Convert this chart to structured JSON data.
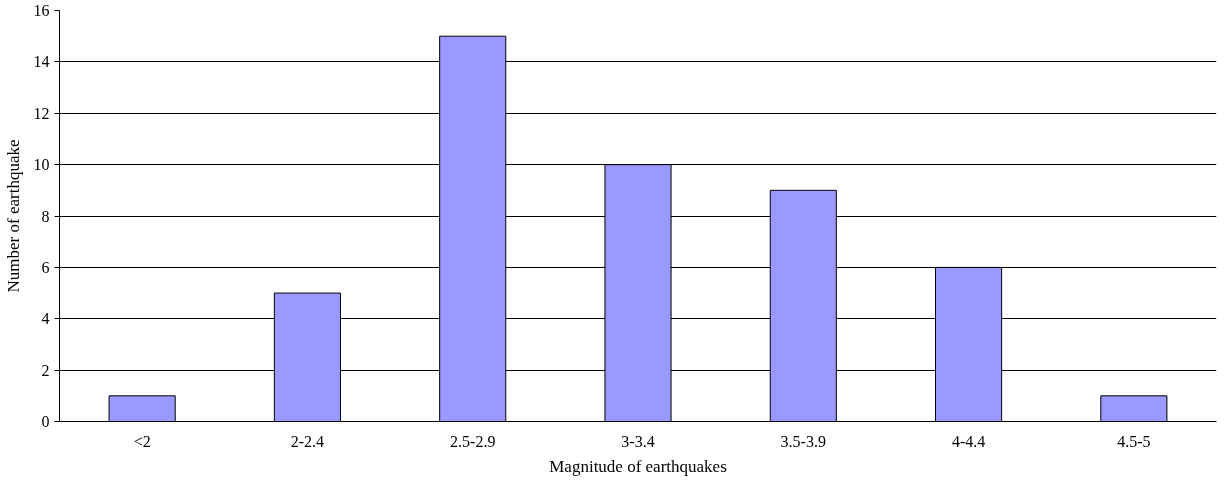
{
  "chart_data": {
    "type": "bar",
    "xlabel": "Magnitude of earthquakes",
    "ylabel": "Number of earthquake",
    "categories": [
      "<2",
      "2-2.4",
      "2.5-2.9",
      "3-3.4",
      "3.5-3.9",
      "4-4.4",
      "4.5-5"
    ],
    "values": [
      1,
      5,
      15,
      10,
      9,
      6,
      1
    ],
    "color": "#9999ff",
    "ylim": [
      0,
      16
    ],
    "yticks": [
      0,
      2,
      4,
      6,
      8,
      10,
      12,
      14,
      16
    ],
    "grid": "y"
  }
}
